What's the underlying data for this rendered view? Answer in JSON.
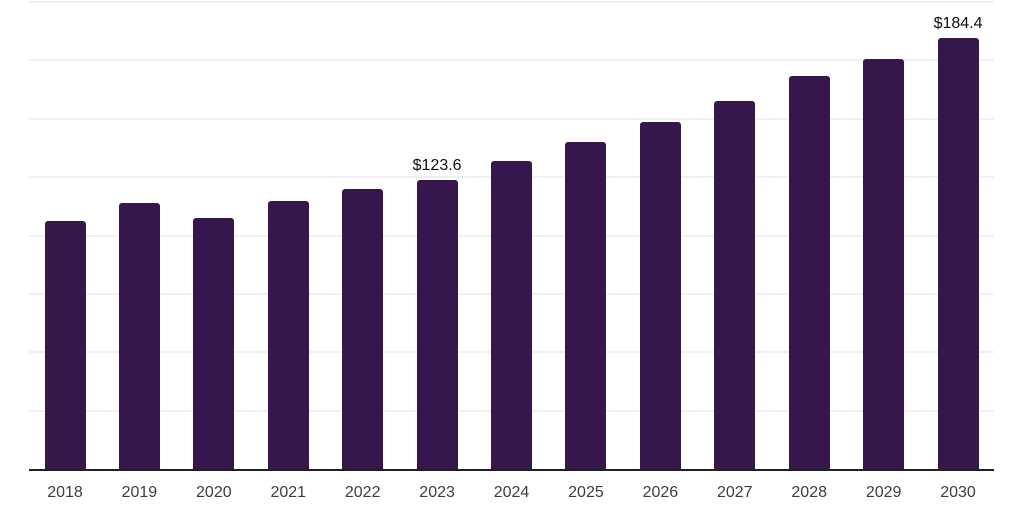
{
  "chart": {
    "background_color": "#ffffff",
    "bar_color": "#35174E",
    "axis_line_color": "#1f1f1f",
    "gridline_color": "#f0f0f2",
    "data_label_color": "#101010",
    "tick_label_color": "#3d3d3d"
  },
  "chart_data": {
    "type": "bar",
    "title": "",
    "xlabel": "",
    "ylabel": "",
    "categories": [
      "2018",
      "2019",
      "2020",
      "2021",
      "2022",
      "2023",
      "2024",
      "2025",
      "2026",
      "2027",
      "2028",
      "2029",
      "2030"
    ],
    "values": [
      106.3,
      114.0,
      107.3,
      114.9,
      120.0,
      123.6,
      132.0,
      139.9,
      148.8,
      157.4,
      168.1,
      175.5,
      184.4
    ],
    "annotations": [
      {
        "category": "2023",
        "label": "$123.6"
      },
      {
        "category": "2030",
        "label": "$184.4"
      }
    ],
    "ylim": [
      0,
      200
    ],
    "grid": true,
    "grid_interval": 25,
    "y_tick_labels_shown": false,
    "legend": false,
    "legend_position": "none"
  }
}
